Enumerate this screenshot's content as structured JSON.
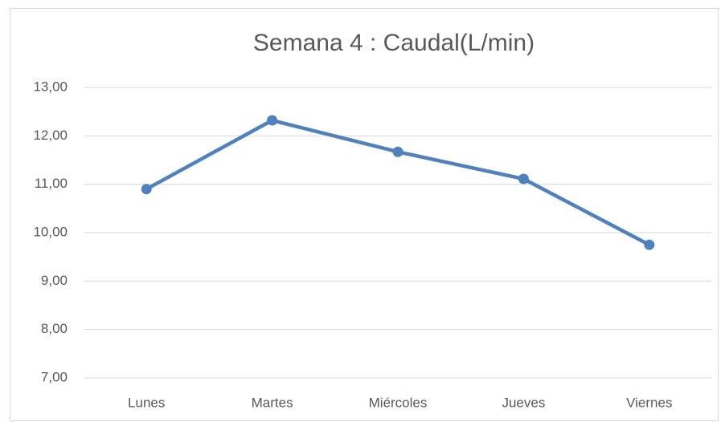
{
  "chart_data": {
    "type": "line",
    "title": "Semana 4  : Caudal(L/min)",
    "categories": [
      "Lunes",
      "Martes",
      "Miércoles",
      "Jueves",
      "Viernes"
    ],
    "series": [
      {
        "name": "Caudal",
        "color": "#4f81bd",
        "values": [
          10.9,
          12.32,
          11.67,
          11.11,
          9.75
        ]
      }
    ],
    "ylim": [
      7,
      13
    ],
    "yticks": [
      {
        "value": 7,
        "label": "7,00"
      },
      {
        "value": 8,
        "label": "8,00"
      },
      {
        "value": 9,
        "label": "9,00"
      },
      {
        "value": 10,
        "label": "10,00"
      },
      {
        "value": 11,
        "label": "11,00"
      },
      {
        "value": 12,
        "label": "12,00"
      },
      {
        "value": 13,
        "label": "13,00"
      }
    ],
    "grid": true,
    "legend": false
  }
}
